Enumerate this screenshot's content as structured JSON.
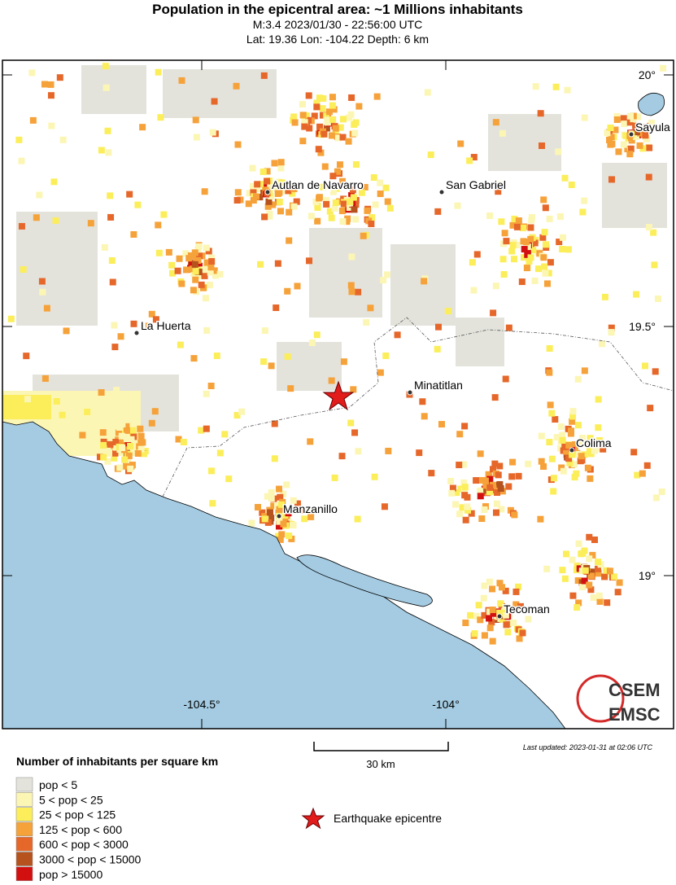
{
  "header": {
    "title": "Population in the epicentral area: ~1 Millions inhabitants",
    "line1": "M:3.4 2023/01/30 - 22:56:00 UTC",
    "line2": "Lat: 19.36 Lon: -104.22 Depth: 6 km"
  },
  "map": {
    "lat_labels": [
      "20°",
      "19.5°",
      "19°"
    ],
    "lon_labels": [
      "-104.5°",
      "-104°"
    ],
    "cities": [
      "Sayula",
      "Autlan de Navarro",
      "San Gabriel",
      "La Huerta",
      "Minatitlan",
      "Colima",
      "Manzanillo",
      "Tecoman"
    ],
    "logo": [
      "CSEM",
      "EMSC"
    ]
  },
  "scale": {
    "label": "30 km"
  },
  "last_updated": "Last updated: 2023-01-31 at 02:06 UTC",
  "legend": {
    "title": "Number of inhabitants per square km",
    "items": [
      "pop < 5",
      "5 < pop < 25",
      "25 < pop < 125",
      "125 < pop < 600",
      "600 < pop < 3000",
      "3000 < pop < 15000",
      "pop > 15000"
    ],
    "epicentre": "Earthquake epicentre"
  }
}
